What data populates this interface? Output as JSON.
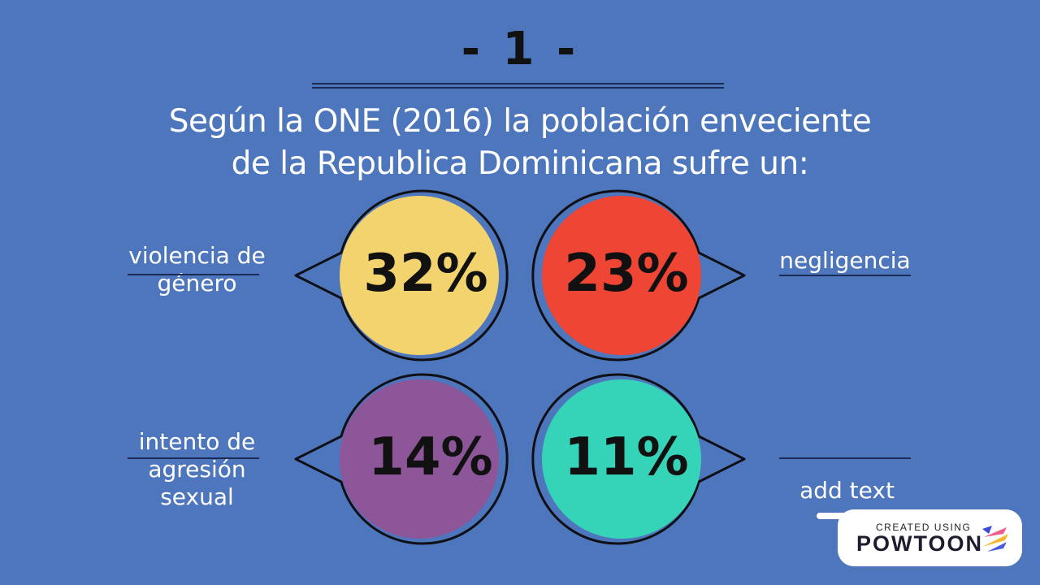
{
  "slide": {
    "number_label": "- 1 -",
    "headline_line1": "Según la ONE (2016) la población enveciente",
    "headline_line2": "de la Republica Dominicana sufre un:"
  },
  "stats": [
    {
      "value": "32%",
      "label_lines": [
        "violencia de",
        "género"
      ],
      "color": "#f3d36d"
    },
    {
      "value": "23%",
      "label_lines": [
        "negligencia"
      ],
      "color": "#ee4535"
    },
    {
      "value": "14%",
      "label_lines": [
        "intento de",
        "agresión",
        "sexual"
      ],
      "color": "#8c5699"
    },
    {
      "value": "11%",
      "label_lines": [
        "add text"
      ],
      "color": "#35d4b8"
    }
  ],
  "colors": {
    "background": "#4d76bd",
    "outline": "#0f0f14"
  },
  "branding": {
    "small_text": "CREATED USING",
    "brand_text": "POWTOON"
  }
}
